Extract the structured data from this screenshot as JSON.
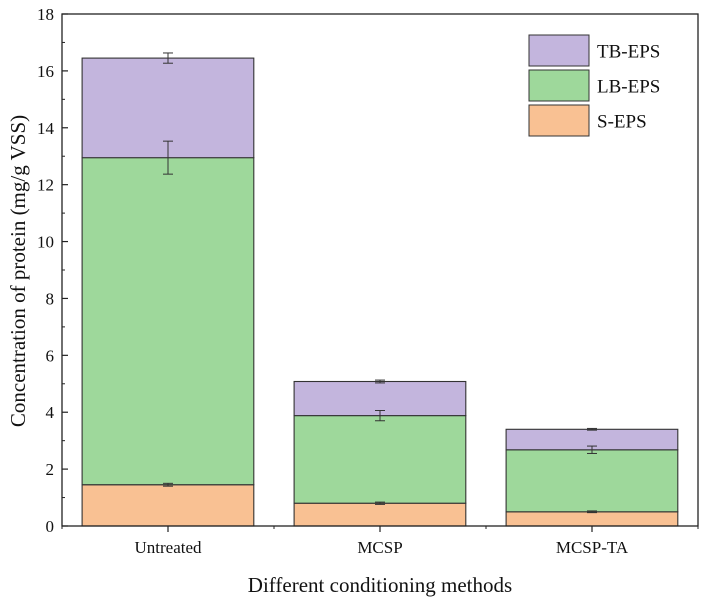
{
  "chart_data": {
    "type": "bar",
    "stacked": true,
    "title": "",
    "xlabel": "Different conditioning methods",
    "ylabel": "Concentration of protein (mg/g VSS)",
    "ylim": [
      0,
      18
    ],
    "yticks": [
      0,
      2,
      4,
      6,
      8,
      10,
      12,
      14,
      16,
      18
    ],
    "categories": [
      "Untreated",
      "MCSP",
      "MCSP-TA"
    ],
    "series": [
      {
        "name": "S-EPS",
        "color": "#f9c193",
        "values": [
          1.45,
          0.8,
          0.5
        ],
        "errors": [
          0.05,
          0.04,
          0.03
        ]
      },
      {
        "name": "LB-EPS",
        "color": "#9ed89b",
        "values": [
          11.5,
          3.08,
          2.18
        ],
        "errors": [
          0.58,
          0.18,
          0.13
        ]
      },
      {
        "name": "TB-EPS",
        "color": "#c3b5dd",
        "values": [
          3.5,
          1.2,
          0.72
        ],
        "errors": [
          0.18,
          0.05,
          0.03
        ]
      }
    ],
    "legend": {
      "position": "top-right",
      "order": [
        "TB-EPS",
        "LB-EPS",
        "S-EPS"
      ]
    },
    "grid": false
  }
}
